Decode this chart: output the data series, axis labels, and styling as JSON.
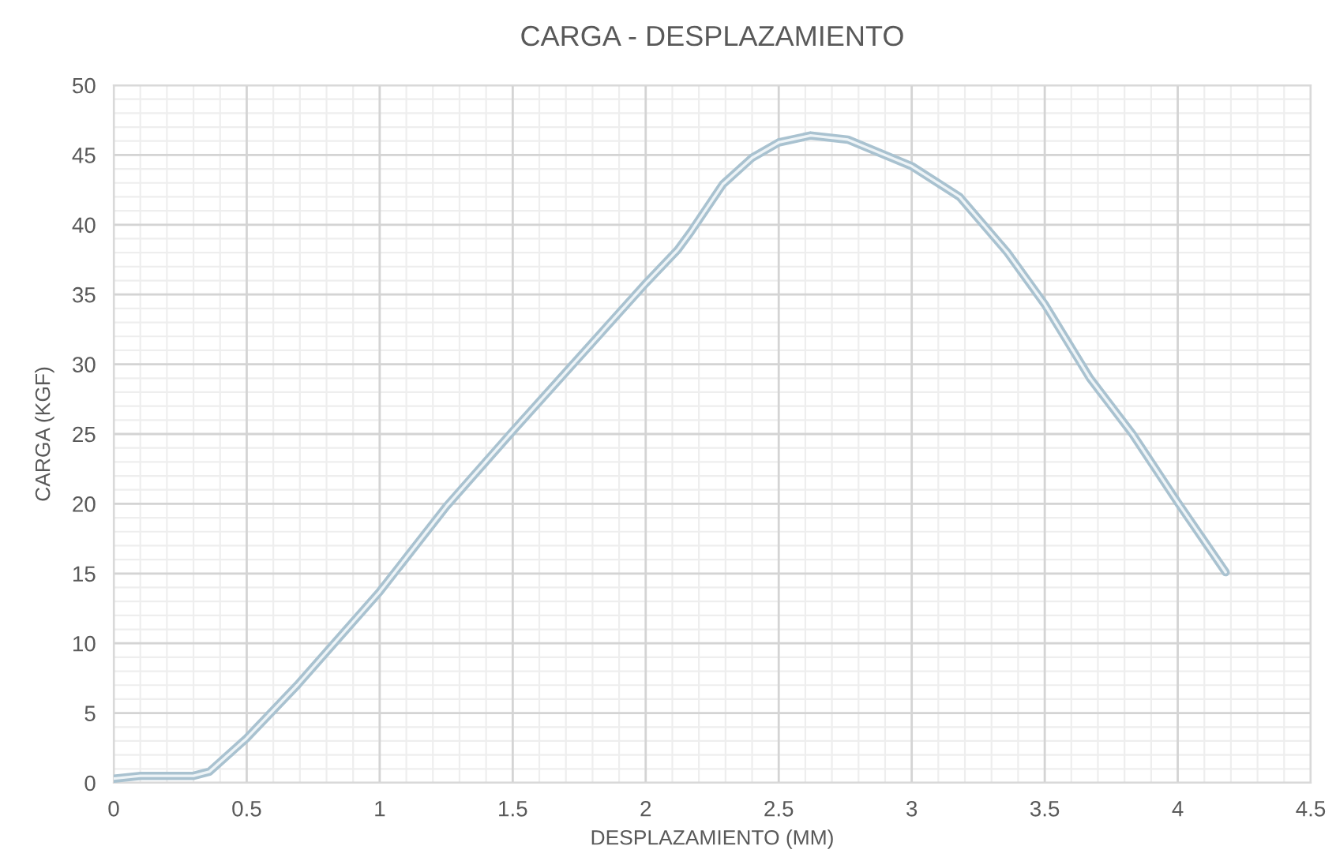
{
  "chart_data": {
    "type": "line",
    "title": "CARGA - DESPLAZAMIENTO",
    "xlabel": "DESPLAZAMIENTO (MM)",
    "ylabel": "CARGA (KGF)",
    "x": [
      0,
      0.1,
      0.3,
      0.36,
      0.5,
      0.69,
      1.0,
      1.25,
      1.5,
      2.0,
      2.12,
      2.17,
      2.29,
      2.4,
      2.5,
      2.62,
      2.76,
      3.0,
      3.18,
      3.36,
      3.5,
      3.67,
      3.83,
      4.0,
      4.18
    ],
    "series": [
      {
        "color": "#a9c2d0",
        "values": [
          0.3,
          0.5,
          0.5,
          0.8,
          3.2,
          7.0,
          13.7,
          19.8,
          25.2,
          35.8,
          38.2,
          39.5,
          42.9,
          44.8,
          45.9,
          46.4,
          46.1,
          44.2,
          42.0,
          38.0,
          34.3,
          29.0,
          25.0,
          20.1,
          15.1
        ]
      }
    ],
    "xlim": [
      0,
      4.5
    ],
    "xticks": [
      0,
      0.5,
      1,
      1.5,
      2,
      2.5,
      3,
      3.5,
      4,
      4.5
    ],
    "ylim": [
      0,
      50
    ],
    "yticks": [
      0,
      5,
      10,
      15,
      20,
      25,
      30,
      35,
      40,
      45,
      50
    ],
    "grid": true,
    "legend": false,
    "marker": "none",
    "line_style": "solid"
  }
}
